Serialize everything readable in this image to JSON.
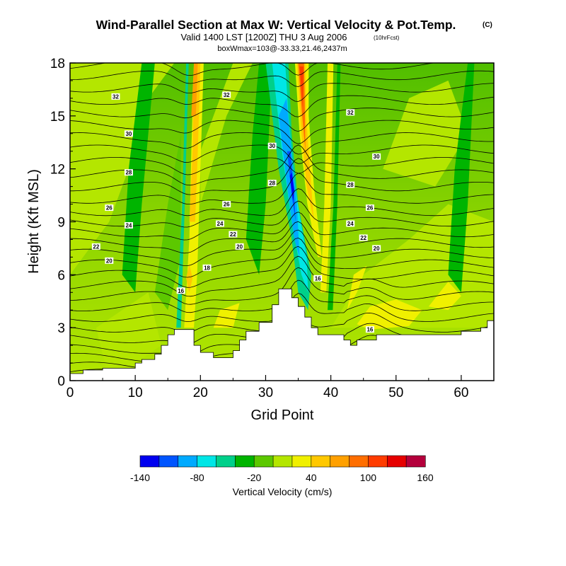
{
  "chart_data": {
    "type": "contour",
    "title": "Wind-Parallel Section at Max W: Vertical Velocity & Pot.Temp.",
    "title_mark": "(C)",
    "subtitle": "Valid 1400 LST [1200Z] THU 3 Aug 2006",
    "subtitle_note": "(10hrFcst)",
    "subtitle2": "boxWmax=103@-33.33,21.46,2437m",
    "xlabel": "Grid Point",
    "ylabel": "Height (Kft MSL)",
    "xlim": [
      0,
      65
    ],
    "ylim": [
      0,
      18
    ],
    "x_ticks": [
      "0",
      "10",
      "20",
      "30",
      "40",
      "50",
      "60"
    ],
    "y_ticks": [
      "0",
      "3",
      "6",
      "9",
      "12",
      "15",
      "18"
    ],
    "colorbar": {
      "label": "Vertical Velocity (cm/s)",
      "tick_labels": [
        "-140",
        "-80",
        "-20",
        "40",
        "100",
        "160"
      ],
      "colors": [
        "#0000f0",
        "#0055ff",
        "#00aaff",
        "#00e6e6",
        "#00d08a",
        "#00b400",
        "#5cc800",
        "#b4e600",
        "#f0f000",
        "#ffc800",
        "#ffa000",
        "#ff6e00",
        "#ff3c00",
        "#e60000",
        "#b4003c"
      ]
    },
    "terrain": [
      [
        0,
        0.4
      ],
      [
        2,
        0.4
      ],
      [
        2,
        0.6
      ],
      [
        5,
        0.6
      ],
      [
        5,
        0.7
      ],
      [
        10,
        0.7
      ],
      [
        10,
        1.0
      ],
      [
        11,
        1.0
      ],
      [
        11,
        1.2
      ],
      [
        13,
        1.2
      ],
      [
        13,
        1.5
      ],
      [
        14,
        1.5
      ],
      [
        14,
        2.0
      ],
      [
        15,
        2.0
      ],
      [
        15,
        2.6
      ],
      [
        16,
        2.6
      ],
      [
        16,
        2.9
      ],
      [
        19,
        2.9
      ],
      [
        19,
        2.0
      ],
      [
        20,
        2.0
      ],
      [
        20,
        1.6
      ],
      [
        22,
        1.6
      ],
      [
        22,
        1.3
      ],
      [
        25,
        1.3
      ],
      [
        25,
        1.7
      ],
      [
        26,
        1.7
      ],
      [
        26,
        2.3
      ],
      [
        27,
        2.3
      ],
      [
        27,
        2.8
      ],
      [
        29,
        2.8
      ],
      [
        29,
        3.3
      ],
      [
        31,
        3.3
      ],
      [
        31,
        4.3
      ],
      [
        32,
        4.3
      ],
      [
        32,
        5.2
      ],
      [
        34,
        5.2
      ],
      [
        34,
        4.7
      ],
      [
        35,
        4.7
      ],
      [
        35,
        4.2
      ],
      [
        36,
        4.2
      ],
      [
        36,
        3.6
      ],
      [
        37,
        3.6
      ],
      [
        37,
        3.0
      ],
      [
        38,
        3.0
      ],
      [
        38,
        2.6
      ],
      [
        42,
        2.6
      ],
      [
        42,
        2.3
      ],
      [
        43,
        2.3
      ],
      [
        43,
        2.0
      ],
      [
        44,
        2.0
      ],
      [
        44,
        2.3
      ],
      [
        47,
        2.3
      ],
      [
        47,
        2.6
      ],
      [
        52,
        2.6
      ],
      [
        52,
        2.6
      ],
      [
        55,
        2.6
      ],
      [
        55,
        2.6
      ],
      [
        60,
        2.6
      ],
      [
        60,
        2.8
      ],
      [
        63,
        2.8
      ],
      [
        63,
        3.0
      ],
      [
        64,
        3.0
      ],
      [
        64,
        3.4
      ],
      [
        65,
        3.4
      ],
      [
        65,
        0
      ]
    ],
    "contour_labels": [
      {
        "text": "32",
        "x": 7,
        "y": 16.1
      },
      {
        "text": "32",
        "x": 24,
        "y": 16.2
      },
      {
        "text": "32",
        "x": 43,
        "y": 15.2
      },
      {
        "text": "30",
        "x": 9,
        "y": 14.0
      },
      {
        "text": "30",
        "x": 31,
        "y": 13.3
      },
      {
        "text": "30",
        "x": 47,
        "y": 12.7
      },
      {
        "text": "28",
        "x": 9,
        "y": 11.8
      },
      {
        "text": "28",
        "x": 31,
        "y": 11.2
      },
      {
        "text": "28",
        "x": 43,
        "y": 11.1
      },
      {
        "text": "26",
        "x": 6,
        "y": 9.8
      },
      {
        "text": "26",
        "x": 24,
        "y": 10.0
      },
      {
        "text": "26",
        "x": 46,
        "y": 9.8
      },
      {
        "text": "24",
        "x": 9,
        "y": 8.8
      },
      {
        "text": "24",
        "x": 23,
        "y": 8.9
      },
      {
        "text": "24",
        "x": 43,
        "y": 8.9
      },
      {
        "text": "22",
        "x": 25,
        "y": 8.3
      },
      {
        "text": "22",
        "x": 4,
        "y": 7.6
      },
      {
        "text": "22",
        "x": 45,
        "y": 8.1
      },
      {
        "text": "20",
        "x": 26,
        "y": 7.6
      },
      {
        "text": "20",
        "x": 6,
        "y": 6.8
      },
      {
        "text": "20",
        "x": 47,
        "y": 7.5
      },
      {
        "text": "18",
        "x": 21,
        "y": 6.4
      },
      {
        "text": "16",
        "x": 17,
        "y": 5.1
      },
      {
        "text": "16",
        "x": 38,
        "y": 5.8
      },
      {
        "text": "16",
        "x": 46,
        "y": 2.9
      }
    ]
  }
}
